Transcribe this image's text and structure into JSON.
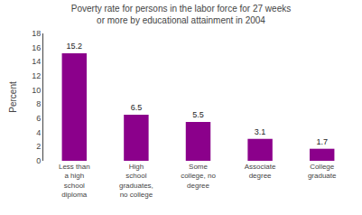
{
  "chart_data": {
    "type": "bar",
    "title": "Poverty rate for persons in the labor force for 27 weeks\nor more by educational attainment in 2004",
    "categories": [
      "Less than\na high\nschool\ndiploma",
      "High\nschool\ngraduates,\nno college",
      "Some\ncollege, no\ndegree",
      "Associate\ndegree",
      "College\ngraduate"
    ],
    "values": [
      15.2,
      6.5,
      5.5,
      3.1,
      1.7
    ],
    "color": "#8B008B",
    "ylabel": "Percent",
    "ylim": [
      0,
      18
    ],
    "yticks": [
      0,
      2,
      4,
      6,
      8,
      10,
      12,
      14,
      16,
      18
    ],
    "grid": false,
    "data_labels": true
  }
}
